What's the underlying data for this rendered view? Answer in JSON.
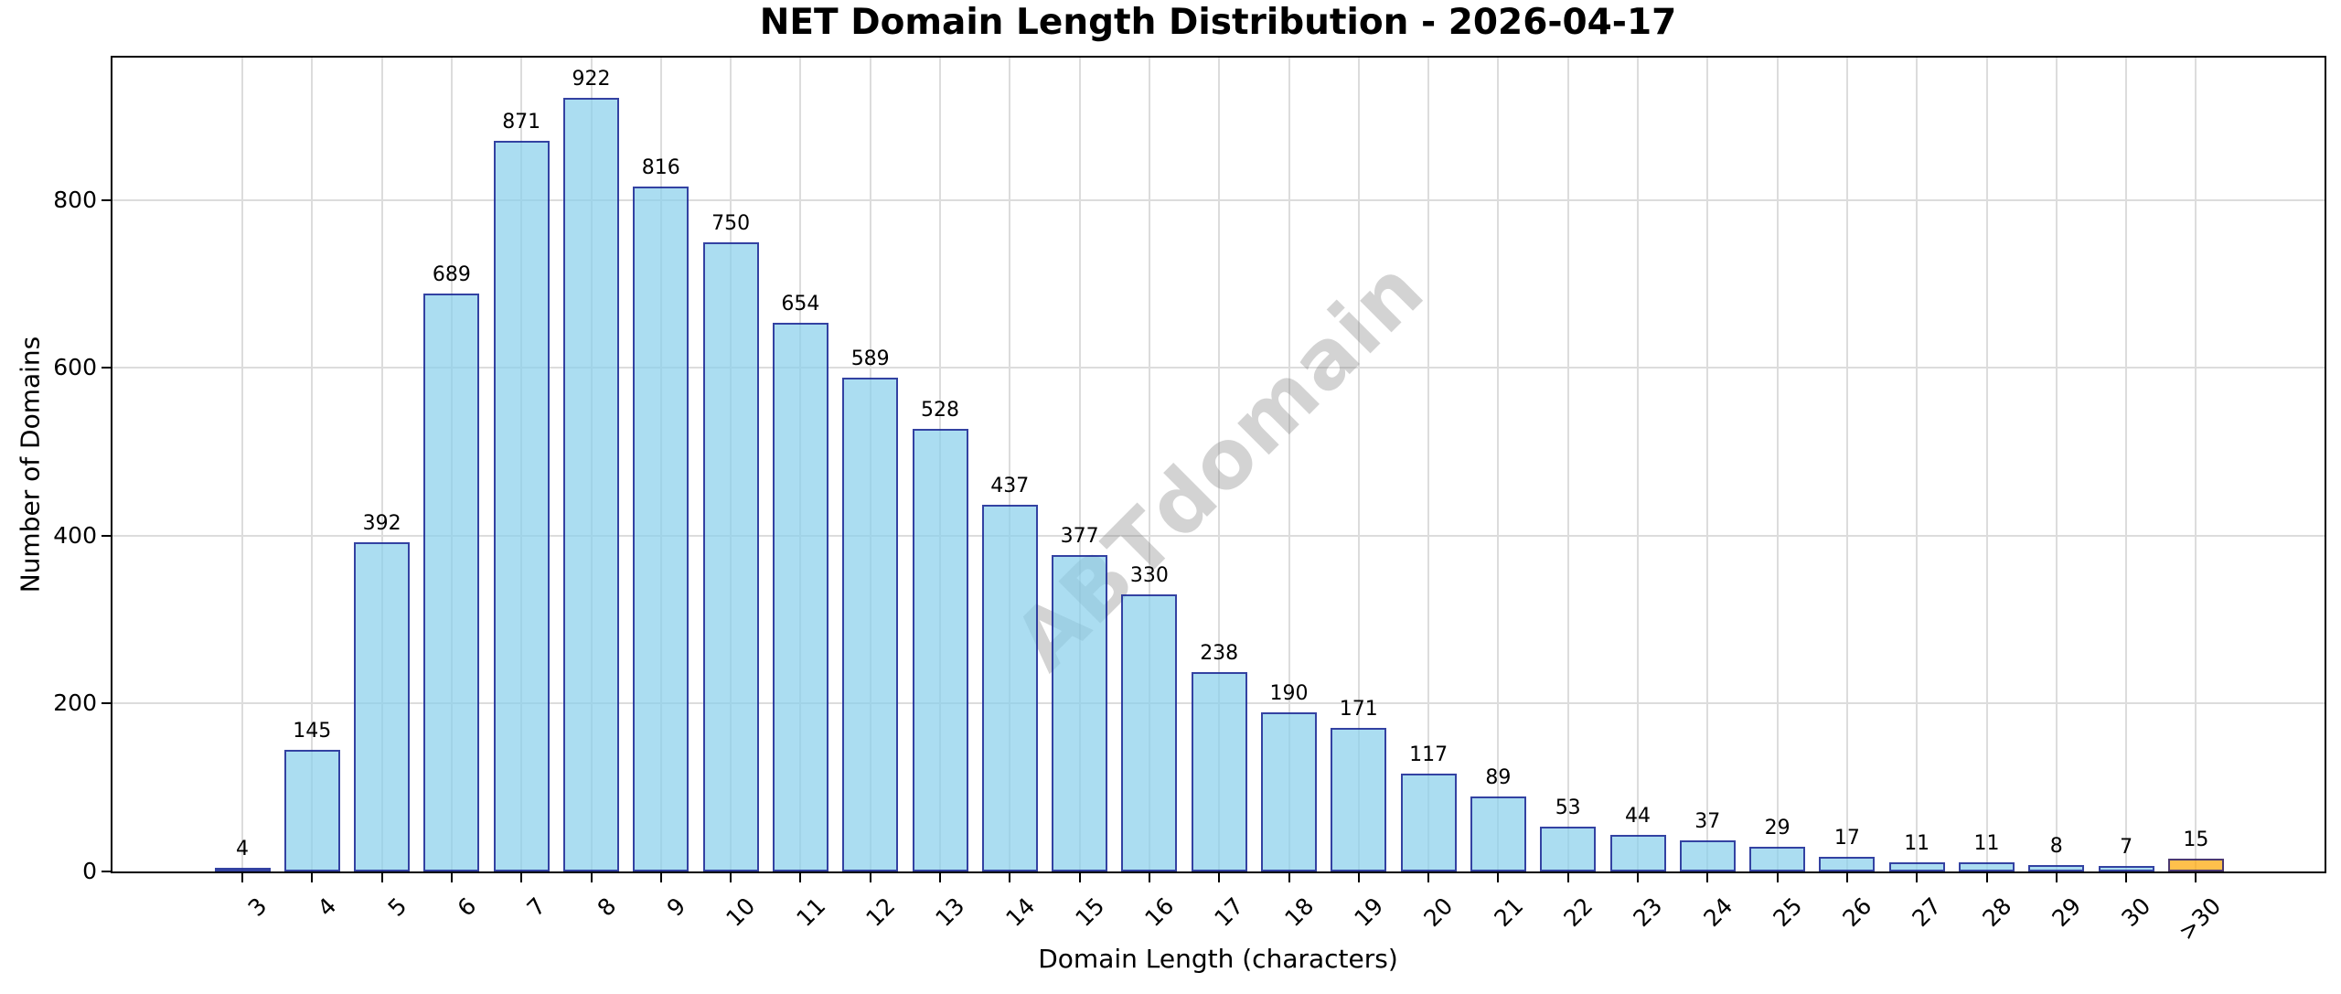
{
  "chart_data": {
    "type": "bar",
    "title": "NET Domain Length Distribution - 2026-04-17",
    "xlabel": "Domain Length (characters)",
    "ylabel": "Number of Domains",
    "watermark": "ABTdomain",
    "categories": [
      "3",
      "4",
      "5",
      "6",
      "7",
      "8",
      "9",
      "10",
      "11",
      "12",
      "13",
      "14",
      "15",
      "16",
      "17",
      "18",
      "19",
      "20",
      "21",
      "22",
      "23",
      "24",
      "25",
      "26",
      "27",
      "28",
      "29",
      "30",
      ">30"
    ],
    "values": [
      4,
      145,
      392,
      689,
      871,
      922,
      816,
      750,
      654,
      589,
      528,
      437,
      377,
      330,
      238,
      190,
      171,
      117,
      89,
      53,
      44,
      37,
      29,
      17,
      11,
      11,
      8,
      7,
      15
    ],
    "yticks": [
      0,
      200,
      400,
      600,
      800
    ],
    "ylim": [
      0,
      970
    ],
    "grid": true,
    "xtick_rotation": 45,
    "legend": "none",
    "colors": {
      "bar_fill": "#87CEEB",
      "bar_edge": "#000080",
      "bar_alpha": 0.7,
      "last_bar_fill": "#FFA500",
      "grid": "#DCDCDC",
      "watermark": "#808080",
      "watermark_alpha": 0.35,
      "text": "#000000",
      "background": "#FFFFFF"
    }
  }
}
